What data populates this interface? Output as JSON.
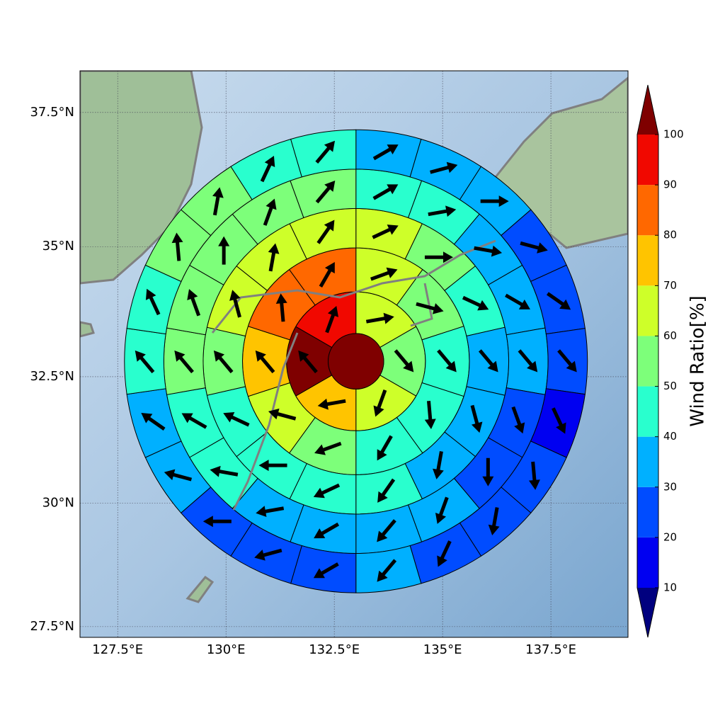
{
  "chart_data": {
    "type": "polar_grid",
    "projection": "mercator",
    "xlim": [
      126.63,
      139.28
    ],
    "ylim": [
      27.28,
      38.26
    ],
    "xticks": [
      {
        "value": 127.5,
        "label": "127.5°E"
      },
      {
        "value": 130,
        "label": "130°E"
      },
      {
        "value": 132.5,
        "label": "132.5°E"
      },
      {
        "value": 135,
        "label": "135°E"
      },
      {
        "value": 137.5,
        "label": "137.5°E"
      }
    ],
    "yticks": [
      {
        "value": 27.5,
        "label": "27.5°N"
      },
      {
        "value": 30,
        "label": "30°N"
      },
      {
        "value": 32.5,
        "label": "32.5°N"
      },
      {
        "value": 35,
        "label": "35°N"
      },
      {
        "value": 37.5,
        "label": "37.5°N"
      }
    ],
    "grid": true,
    "center": [
      133.0,
      32.8
    ],
    "ring_radii_km": [
      60,
      150,
      245,
      330,
      415,
      500
    ],
    "center_value": 105,
    "rings": [
      {
        "values": [
          65,
          55,
          65,
          75,
          105,
          95
        ],
        "directions": [
          80,
          140,
          200,
          260,
          320,
          20
        ]
      },
      {
        "values": [
          65,
          55,
          45,
          45,
          45,
          55,
          65,
          75,
          85,
          85
        ],
        "directions": [
          70,
          105,
          140,
          175,
          210,
          250,
          285,
          320,
          355,
          30
        ]
      },
      {
        "values": [
          65,
          55,
          45,
          35,
          35,
          35,
          45,
          45,
          45,
          45,
          55,
          65,
          65,
          65
        ],
        "directions": [
          65,
          90,
          115,
          140,
          165,
          190,
          215,
          245,
          270,
          295,
          320,
          345,
          10,
          35
        ]
      },
      {
        "values": [
          45,
          45,
          35,
          35,
          35,
          25,
          25,
          35,
          35,
          35,
          35,
          45,
          45,
          55,
          55,
          55,
          55,
          55
        ],
        "directions": [
          60,
          80,
          100,
          120,
          140,
          160,
          180,
          200,
          220,
          240,
          260,
          280,
          300,
          320,
          340,
          0,
          20,
          40
        ]
      },
      {
        "values": [
          35,
          35,
          35,
          25,
          25,
          25,
          15,
          25,
          25,
          25,
          35,
          25,
          25,
          25,
          35,
          35,
          45,
          45,
          55,
          55,
          45,
          45
        ],
        "directions": [
          60,
          75,
          90,
          105,
          125,
          140,
          155,
          175,
          190,
          205,
          220,
          240,
          255,
          270,
          285,
          305,
          320,
          335,
          355,
          10,
          25,
          40
        ]
      }
    ],
    "colorbar": {
      "label": "Wind Ratio[%]",
      "ticks": [
        10,
        20,
        30,
        40,
        50,
        60,
        70,
        80,
        90,
        100
      ],
      "colors": [
        "#0000f1",
        "#004cff",
        "#00b0ff",
        "#29ffce",
        "#7dff7a",
        "#ceff29",
        "#ffc400",
        "#ff6800",
        "#f10800"
      ],
      "under": "#00007f",
      "over": "#7f0000"
    }
  }
}
